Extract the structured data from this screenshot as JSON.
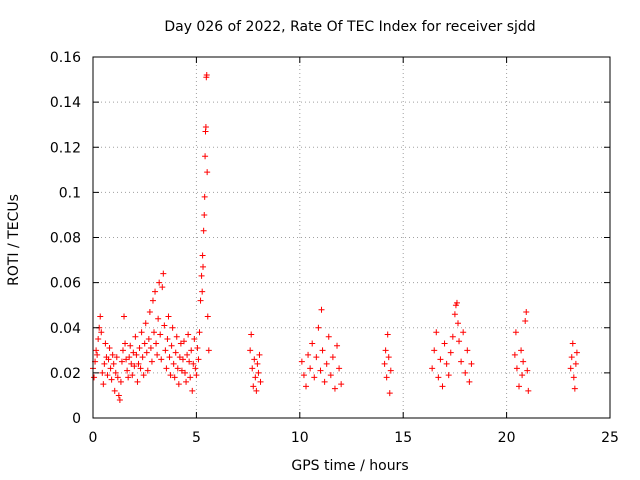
{
  "chart_data": {
    "type": "scatter",
    "title": "Day 026 of 2022, Rate Of TEC Index for receiver sjdd",
    "xlabel": "GPS time / hours",
    "ylabel": "ROTI / TECUs",
    "xlim": [
      0,
      25
    ],
    "ylim": [
      0,
      0.16
    ],
    "xticks": [
      0,
      5,
      10,
      15,
      20,
      25
    ],
    "xtick_labels": [
      "0",
      "5",
      "10",
      "15",
      "20",
      "25"
    ],
    "yticks": [
      0,
      0.02,
      0.04,
      0.06,
      0.08,
      0.1,
      0.12,
      0.14,
      0.16
    ],
    "ytick_labels": [
      "0",
      "0.02",
      "0.04",
      "0.06",
      "0.08",
      "0.1",
      "0.12",
      "0.14",
      "0.16"
    ],
    "grid": true,
    "marker": "+",
    "color": "#ff0000",
    "series": [
      {
        "name": "ROTI",
        "points": [
          [
            0.0,
            0.022
          ],
          [
            0.05,
            0.018
          ],
          [
            0.1,
            0.025
          ],
          [
            0.15,
            0.03
          ],
          [
            0.2,
            0.028
          ],
          [
            0.25,
            0.035
          ],
          [
            0.3,
            0.04
          ],
          [
            0.35,
            0.045
          ],
          [
            0.4,
            0.038
          ],
          [
            0.45,
            0.02
          ],
          [
            0.5,
            0.015
          ],
          [
            0.55,
            0.024
          ],
          [
            0.6,
            0.033
          ],
          [
            0.65,
            0.027
          ],
          [
            0.7,
            0.019
          ],
          [
            0.75,
            0.026
          ],
          [
            0.8,
            0.031
          ],
          [
            0.85,
            0.022
          ],
          [
            0.9,
            0.017
          ],
          [
            0.95,
            0.028
          ],
          [
            1.0,
            0.024
          ],
          [
            1.05,
            0.012
          ],
          [
            1.1,
            0.02
          ],
          [
            1.15,
            0.027
          ],
          [
            1.2,
            0.018
          ],
          [
            1.25,
            0.01
          ],
          [
            1.3,
            0.008
          ],
          [
            1.35,
            0.016
          ],
          [
            1.4,
            0.025
          ],
          [
            1.45,
            0.03
          ],
          [
            1.5,
            0.045
          ],
          [
            1.55,
            0.033
          ],
          [
            1.6,
            0.026
          ],
          [
            1.65,
            0.021
          ],
          [
            1.7,
            0.018
          ],
          [
            1.75,
            0.027
          ],
          [
            1.8,
            0.032
          ],
          [
            1.85,
            0.024
          ],
          [
            1.9,
            0.019
          ],
          [
            1.95,
            0.029
          ],
          [
            2.0,
            0.023
          ],
          [
            2.05,
            0.036
          ],
          [
            2.1,
            0.028
          ],
          [
            2.15,
            0.016
          ],
          [
            2.2,
            0.024
          ],
          [
            2.25,
            0.031
          ],
          [
            2.3,
            0.022
          ],
          [
            2.35,
            0.038
          ],
          [
            2.4,
            0.027
          ],
          [
            2.45,
            0.019
          ],
          [
            2.5,
            0.033
          ],
          [
            2.55,
            0.042
          ],
          [
            2.6,
            0.029
          ],
          [
            2.65,
            0.021
          ],
          [
            2.7,
            0.035
          ],
          [
            2.75,
            0.047
          ],
          [
            2.8,
            0.031
          ],
          [
            2.85,
            0.025
          ],
          [
            2.9,
            0.052
          ],
          [
            2.95,
            0.038
          ],
          [
            3.0,
            0.056
          ],
          [
            3.05,
            0.033
          ],
          [
            3.1,
            0.028
          ],
          [
            3.15,
            0.044
          ],
          [
            3.2,
            0.06
          ],
          [
            3.25,
            0.037
          ],
          [
            3.3,
            0.026
          ],
          [
            3.35,
            0.058
          ],
          [
            3.4,
            0.064
          ],
          [
            3.45,
            0.041
          ],
          [
            3.5,
            0.03
          ],
          [
            3.55,
            0.022
          ],
          [
            3.6,
            0.035
          ],
          [
            3.65,
            0.045
          ],
          [
            3.7,
            0.027
          ],
          [
            3.75,
            0.019
          ],
          [
            3.8,
            0.032
          ],
          [
            3.85,
            0.04
          ],
          [
            3.9,
            0.024
          ],
          [
            3.95,
            0.018
          ],
          [
            4.0,
            0.029
          ],
          [
            4.05,
            0.036
          ],
          [
            4.1,
            0.022
          ],
          [
            4.15,
            0.015
          ],
          [
            4.2,
            0.027
          ],
          [
            4.25,
            0.033
          ],
          [
            4.3,
            0.021
          ],
          [
            4.35,
            0.026
          ],
          [
            4.4,
            0.034
          ],
          [
            4.45,
            0.02
          ],
          [
            4.5,
            0.016
          ],
          [
            4.55,
            0.028
          ],
          [
            4.6,
            0.037
          ],
          [
            4.65,
            0.025
          ],
          [
            4.7,
            0.018
          ],
          [
            4.75,
            0.03
          ],
          [
            4.8,
            0.012
          ],
          [
            4.85,
            0.024
          ],
          [
            4.9,
            0.035
          ],
          [
            4.95,
            0.022
          ],
          [
            5.0,
            0.019
          ],
          [
            5.05,
            0.031
          ],
          [
            5.1,
            0.026
          ],
          [
            5.15,
            0.038
          ],
          [
            5.2,
            0.052
          ],
          [
            5.25,
            0.063
          ],
          [
            5.3,
            0.072
          ],
          [
            5.35,
            0.083
          ],
          [
            5.4,
            0.098
          ],
          [
            5.42,
            0.116
          ],
          [
            5.44,
            0.127
          ],
          [
            5.46,
            0.129
          ],
          [
            5.48,
            0.151
          ],
          [
            5.5,
            0.152
          ],
          [
            5.52,
            0.109
          ],
          [
            5.38,
            0.09
          ],
          [
            5.32,
            0.067
          ],
          [
            5.28,
            0.056
          ],
          [
            5.55,
            0.045
          ],
          [
            5.6,
            0.03
          ],
          [
            7.6,
            0.03
          ],
          [
            7.65,
            0.037
          ],
          [
            7.7,
            0.022
          ],
          [
            7.75,
            0.014
          ],
          [
            7.8,
            0.026
          ],
          [
            7.85,
            0.018
          ],
          [
            7.9,
            0.012
          ],
          [
            7.95,
            0.024
          ],
          [
            8.0,
            0.02
          ],
          [
            8.05,
            0.028
          ],
          [
            8.1,
            0.016
          ],
          [
            10.1,
            0.025
          ],
          [
            10.2,
            0.019
          ],
          [
            10.3,
            0.014
          ],
          [
            10.4,
            0.028
          ],
          [
            10.5,
            0.022
          ],
          [
            10.6,
            0.033
          ],
          [
            10.7,
            0.018
          ],
          [
            10.8,
            0.027
          ],
          [
            10.9,
            0.04
          ],
          [
            11.0,
            0.021
          ],
          [
            11.05,
            0.048
          ],
          [
            11.1,
            0.03
          ],
          [
            11.2,
            0.016
          ],
          [
            11.3,
            0.024
          ],
          [
            11.4,
            0.036
          ],
          [
            11.5,
            0.019
          ],
          [
            11.6,
            0.027
          ],
          [
            11.7,
            0.013
          ],
          [
            11.8,
            0.032
          ],
          [
            11.9,
            0.022
          ],
          [
            12.0,
            0.015
          ],
          [
            14.1,
            0.024
          ],
          [
            14.15,
            0.03
          ],
          [
            14.2,
            0.018
          ],
          [
            14.25,
            0.037
          ],
          [
            14.3,
            0.027
          ],
          [
            14.35,
            0.011
          ],
          [
            14.4,
            0.021
          ],
          [
            16.4,
            0.022
          ],
          [
            16.5,
            0.03
          ],
          [
            16.6,
            0.038
          ],
          [
            16.7,
            0.018
          ],
          [
            16.8,
            0.026
          ],
          [
            16.9,
            0.014
          ],
          [
            17.0,
            0.033
          ],
          [
            17.1,
            0.024
          ],
          [
            17.2,
            0.019
          ],
          [
            17.3,
            0.029
          ],
          [
            17.4,
            0.036
          ],
          [
            17.5,
            0.046
          ],
          [
            17.55,
            0.05
          ],
          [
            17.6,
            0.051
          ],
          [
            17.65,
            0.042
          ],
          [
            17.7,
            0.034
          ],
          [
            17.8,
            0.025
          ],
          [
            17.9,
            0.038
          ],
          [
            18.0,
            0.02
          ],
          [
            18.1,
            0.03
          ],
          [
            18.2,
            0.016
          ],
          [
            18.3,
            0.024
          ],
          [
            20.4,
            0.028
          ],
          [
            20.45,
            0.038
          ],
          [
            20.5,
            0.022
          ],
          [
            20.6,
            0.014
          ],
          [
            20.7,
            0.03
          ],
          [
            20.75,
            0.019
          ],
          [
            20.8,
            0.025
          ],
          [
            20.9,
            0.043
          ],
          [
            20.95,
            0.047
          ],
          [
            21.0,
            0.021
          ],
          [
            21.05,
            0.012
          ],
          [
            23.1,
            0.022
          ],
          [
            23.15,
            0.027
          ],
          [
            23.2,
            0.033
          ],
          [
            23.25,
            0.018
          ],
          [
            23.3,
            0.013
          ],
          [
            23.35,
            0.024
          ],
          [
            23.4,
            0.029
          ]
        ]
      }
    ]
  }
}
